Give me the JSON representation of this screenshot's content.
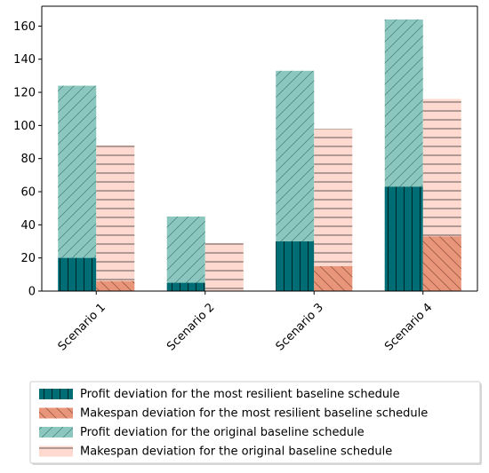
{
  "chart_data": {
    "type": "bar",
    "categories": [
      "Scenario 1",
      "Scenario 2",
      "Scenario 3",
      "Scenario 4"
    ],
    "series": [
      {
        "name": "Profit deviation for the most resilient baseline schedule",
        "values": [
          20,
          5,
          30,
          63
        ],
        "color": "#006d75",
        "hatch": "vertical"
      },
      {
        "name": "Makespan deviation for the most resilient baseline schedule",
        "values": [
          6,
          0,
          15,
          33
        ],
        "color": "#e8957a",
        "hatch": "backslash"
      },
      {
        "name": "Profit deviation for the original baseline schedule",
        "values": [
          124,
          45,
          133,
          164
        ],
        "color": "#8cc7bf",
        "hatch": "slash"
      },
      {
        "name": "Makespan deviation for the original baseline schedule",
        "values": [
          88,
          29,
          98,
          116
        ],
        "color": "#fdd9d0",
        "hatch": "horizontal"
      }
    ],
    "yticks": [
      0,
      20,
      40,
      60,
      80,
      100,
      120,
      140,
      160
    ],
    "ylim": [
      0,
      172
    ],
    "grid": false,
    "legend_position": "bottom"
  }
}
